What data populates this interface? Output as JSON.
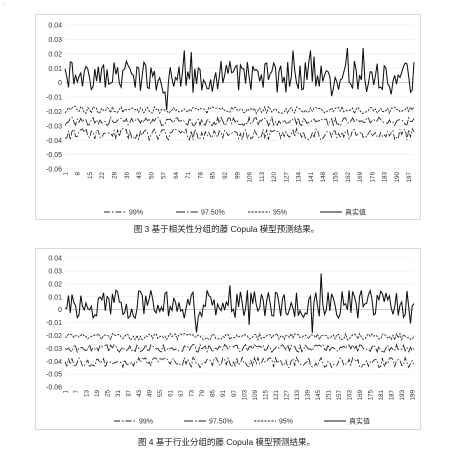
{
  "page": {
    "stray_mark": ".",
    "captions": [
      "图 3  基于相关性分组的藤 Copula 模型预测结果。",
      "图 4  基于行业分组的藤 Copula 模型预测结果。"
    ]
  },
  "chart_data": [
    {
      "type": "line",
      "title": "",
      "ylim": [
        -0.06,
        0.04
      ],
      "y_ticks": [
        "0.04",
        "0.03",
        "0.02",
        "0.01",
        "0",
        "-0.01",
        "-0.02",
        "-0.03",
        "-0.04",
        "-0.05",
        "-0.06"
      ],
      "x_start": 1,
      "x_end": 200,
      "x_tick_labels": [
        "1",
        "8",
        "15",
        "22",
        "29",
        "36",
        "43",
        "50",
        "57",
        "64",
        "71",
        "78",
        "85",
        "92",
        "99",
        "106",
        "113",
        "120",
        "127",
        "134",
        "141",
        "148",
        "155",
        "162",
        "169",
        "176",
        "183",
        "190",
        "197"
      ],
      "legend": {
        "position": "bottom",
        "entries": [
          {
            "label": "99%",
            "style": "dash-dot",
            "color": "#222222"
          },
          {
            "label": "97.50%",
            "style": "long-dash-dot",
            "color": "#222222"
          },
          {
            "label": "95%",
            "style": "dashed",
            "color": "#222222"
          },
          {
            "label": "真实值",
            "style": "solid",
            "color": "#111111"
          }
        ]
      },
      "series": [
        {
          "name": "99%",
          "baseline": -0.036,
          "amplitude": 0.004,
          "seed": 11
        },
        {
          "name": "97.50%",
          "baseline": -0.027,
          "amplitude": 0.003,
          "seed": 23
        },
        {
          "name": "95%",
          "baseline": -0.019,
          "amplitude": 0.0025,
          "seed": 37
        },
        {
          "name": "真实值",
          "baseline": 0.004,
          "amplitude": 0.011,
          "seed": 5
        }
      ]
    },
    {
      "type": "line",
      "title": "",
      "ylim": [
        -0.06,
        0.04
      ],
      "y_ticks": [
        "0.04",
        "0.03",
        "0.02",
        "0.01",
        "0",
        "-0.01",
        "-0.02",
        "-0.03",
        "-0.04",
        "-0.05",
        "-0.06"
      ],
      "x_start": 1,
      "x_end": 200,
      "x_tick_labels": [
        "1",
        "7",
        "13",
        "19",
        "25",
        "31",
        "37",
        "43",
        "49",
        "55",
        "61",
        "67",
        "73",
        "79",
        "85",
        "91",
        "97",
        "103",
        "109",
        "115",
        "121",
        "127",
        "133",
        "139",
        "145",
        "151",
        "157",
        "163",
        "169",
        "175",
        "181",
        "187",
        "193",
        "199"
      ],
      "legend": {
        "position": "bottom",
        "entries": [
          {
            "label": "99%",
            "style": "dash-dot",
            "color": "#222222"
          },
          {
            "label": "97.50%",
            "style": "long-dash-dot",
            "color": "#222222"
          },
          {
            "label": "95%",
            "style": "dashed",
            "color": "#222222"
          },
          {
            "label": "真实值",
            "style": "solid",
            "color": "#111111"
          }
        ]
      },
      "series": [
        {
          "name": "99%",
          "baseline": -0.041,
          "amplitude": 0.004,
          "seed": 71
        },
        {
          "name": "97.50%",
          "baseline": -0.03,
          "amplitude": 0.003,
          "seed": 83
        },
        {
          "name": "95%",
          "baseline": -0.021,
          "amplitude": 0.0025,
          "seed": 97
        },
        {
          "name": "真实值",
          "baseline": 0.004,
          "amplitude": 0.011,
          "seed": 41
        }
      ]
    }
  ]
}
